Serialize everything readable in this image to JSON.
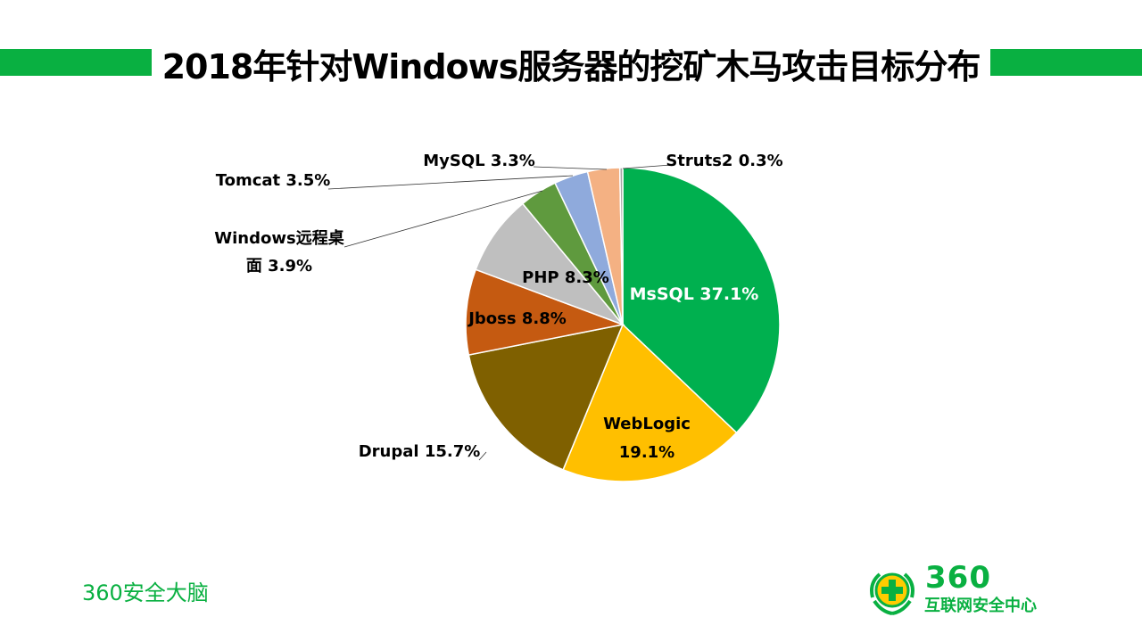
{
  "page": {
    "title": "2018年针对Windows服务器的挖矿木马攻击目标分布",
    "footer_brand": "360安全大脑",
    "logo_number": "360",
    "logo_text": "互联网安全中心"
  },
  "colors": {
    "accent": "#09b041"
  },
  "chart_data": {
    "type": "pie",
    "title": "2018年针对Windows服务器的挖矿木马攻击目标分布",
    "start": "12 o'clock",
    "direction": "clockwise",
    "slices": [
      {
        "label": "MsSQL",
        "value": 37.1,
        "display": "MsSQL 37.1%",
        "color": "#00b04f",
        "label_color": "#ffffff",
        "label_placement": "inside"
      },
      {
        "label": "WebLogic",
        "value": 19.1,
        "display": "WebLogic|19.1%",
        "color": "#ffbf00",
        "label_color": "#000000",
        "label_placement": "inside"
      },
      {
        "label": "Drupal",
        "value": 15.7,
        "display": "Drupal 15.7%",
        "color": "#7f6000",
        "label_color": "#000000",
        "label_placement": "outside"
      },
      {
        "label": "Jboss",
        "value": 8.8,
        "display": "Jboss 8.8%",
        "color": "#c55a11",
        "label_color": "#000000",
        "label_placement": "inside"
      },
      {
        "label": "PHP",
        "value": 8.3,
        "display": "PHP 8.3%",
        "color": "#bfbfbf",
        "label_color": "#000000",
        "label_placement": "inside"
      },
      {
        "label": "Windows远程桌面",
        "value": 3.9,
        "display": "Windows远程桌|面 3.9%",
        "color": "#5f9a3e",
        "label_color": "#000000",
        "label_placement": "outside"
      },
      {
        "label": "Tomcat",
        "value": 3.5,
        "display": "Tomcat 3.5%",
        "color": "#8faadc",
        "label_color": "#000000",
        "label_placement": "outside"
      },
      {
        "label": "MySQL",
        "value": 3.3,
        "display": "MySQL 3.3%",
        "color": "#f4b183",
        "label_color": "#000000",
        "label_placement": "outside"
      },
      {
        "label": "Struts2",
        "value": 0.3,
        "display": "Struts2 0.3%",
        "color": "#a5a5a5",
        "label_color": "#000000",
        "label_placement": "outside"
      }
    ]
  }
}
